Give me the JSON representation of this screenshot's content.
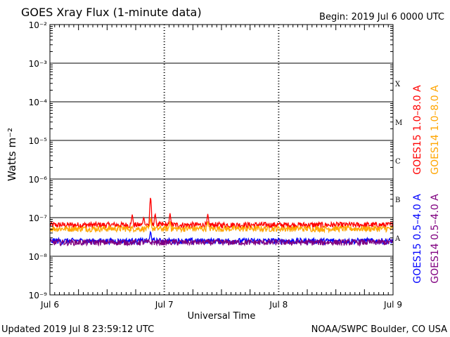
{
  "header": {
    "title": "GOES Xray Flux (1-minute data)",
    "begin": "Begin:  2019 Jul 6 0000 UTC"
  },
  "footer": {
    "updated": "Updated 2019 Jul  8 23:59:12 UTC",
    "credit": "NOAA/SWPC Boulder, CO USA"
  },
  "chart_data": {
    "type": "line",
    "title": "GOES Xray Flux (1-minute data)",
    "xlabel": "Universal Time",
    "ylabel": "Watts m⁻²",
    "yscale": "log",
    "ylim": [
      1e-09,
      0.01
    ],
    "xlim": [
      0,
      3
    ],
    "x_tick_labels": [
      "Jul 6",
      "Jul 7",
      "Jul 8",
      "Jul 9"
    ],
    "y_tick_labels": [
      "10⁻⁹",
      "10⁻⁸",
      "10⁻⁷",
      "10⁻⁶",
      "10⁻⁵",
      "10⁻⁴",
      "10⁻³",
      "10⁻²"
    ],
    "flare_classes": [
      {
        "label": "X",
        "value": 0.0003
      },
      {
        "label": "M",
        "value": 3e-05
      },
      {
        "label": "C",
        "value": 3e-06
      },
      {
        "label": "B",
        "value": 3e-07
      },
      {
        "label": "A",
        "value": 3e-08
      }
    ],
    "grid": true,
    "series": [
      {
        "name": "GOES15 1.0–8.0 A",
        "color": "#ff0000",
        "baseline": 6.5e-08,
        "peaks": [
          [
            0.72,
            1.2e-07
          ],
          [
            0.82,
            1.05e-07
          ],
          [
            0.88,
            3.6e-07
          ],
          [
            0.92,
            1.3e-07
          ],
          [
            1.05,
            1.3e-07
          ],
          [
            1.38,
            1.25e-07
          ]
        ]
      },
      {
        "name": "GOES14 1.0–8.0 A",
        "color": "#ffa500",
        "baseline": 5.2e-08,
        "peaks": [
          [
            0.88,
            1e-07
          ],
          [
            1.05,
            8e-08
          ],
          [
            1.38,
            8e-08
          ]
        ]
      },
      {
        "name": "GOES15 0.5–4.0 A",
        "color": "#0000ff",
        "baseline": 2.5e-08,
        "peaks": [
          [
            0.88,
            4.5e-08
          ]
        ]
      },
      {
        "name": "GOES14 0.5–4.0 A",
        "color": "#800080",
        "baseline": 2.3e-08,
        "peaks": []
      }
    ]
  }
}
